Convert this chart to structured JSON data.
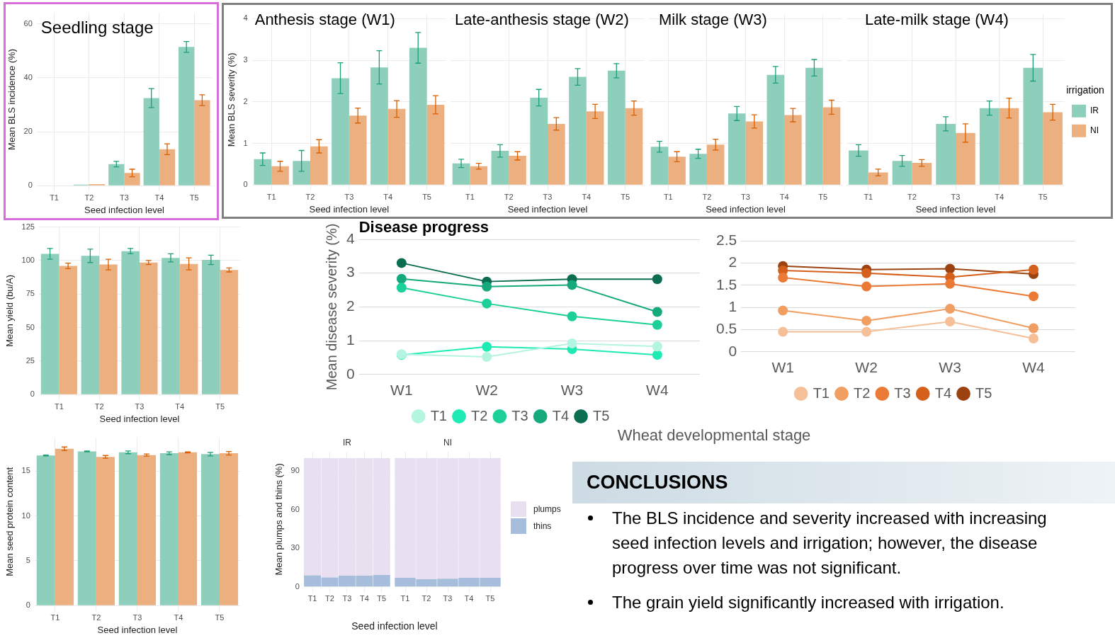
{
  "chart_data": [
    {
      "type": "bar",
      "title": "Seedling stage",
      "xlabel": "Seed infection level",
      "ylabel": "Mean BLS incidence (%)",
      "categories": [
        "T1",
        "T2",
        "T3",
        "T4",
        "T5"
      ],
      "series": [
        {
          "color": "#8dcfbb",
          "values": [
            0,
            0.4,
            8,
            32.5,
            51.5
          ],
          "errors": [
            null,
            null,
            1,
            3.5,
            2
          ]
        },
        {
          "color": "#ecaf80",
          "values": [
            0,
            0.6,
            4.7,
            13.5,
            31.7
          ],
          "errors": [
            null,
            null,
            1.4,
            2,
            2
          ]
        }
      ],
      "ylim": [
        0,
        64
      ],
      "yticks": [
        0,
        20,
        40,
        60
      ],
      "grid": true
    },
    {
      "type": "bar",
      "title": "Anthesis stage (W1)",
      "xlabel": "Seed infection level",
      "ylabel": "Mean BLS severity (%)",
      "categories": [
        "T1",
        "T2",
        "T3",
        "T4",
        "T5"
      ],
      "series": [
        {
          "color": "#8dcfbb",
          "values": [
            0.62,
            0.58,
            2.57,
            2.83,
            3.3
          ],
          "errors": [
            0.15,
            0.25,
            0.37,
            0.4,
            0.37
          ]
        },
        {
          "color": "#ecaf80",
          "values": [
            0.45,
            0.93,
            1.67,
            1.83,
            1.93
          ],
          "errors": [
            0.12,
            0.16,
            0.18,
            0.2,
            0.22
          ]
        }
      ],
      "ylim": [
        0,
        4.1
      ],
      "yticks": [
        0,
        1,
        2,
        3,
        4
      ],
      "grid": true
    },
    {
      "type": "bar",
      "title": "Late-anthesis stage (W2)",
      "xlabel": "Seed infection level",
      "categories": [
        "T1",
        "T2",
        "T3",
        "T4",
        "T5"
      ],
      "series": [
        {
          "color": "#8dcfbb",
          "values": [
            0.52,
            0.82,
            2.1,
            2.6,
            2.75
          ],
          "errors": [
            0.1,
            0.15,
            0.2,
            0.2,
            0.17
          ]
        },
        {
          "color": "#ecaf80",
          "values": [
            0.45,
            0.7,
            1.47,
            1.77,
            1.85
          ],
          "errors": [
            0.07,
            0.1,
            0.15,
            0.17,
            0.17
          ]
        }
      ],
      "ylim": [
        0,
        4.1
      ],
      "yticks": [
        0,
        1,
        2,
        3,
        4
      ],
      "tick_labels": "x",
      "grid": true
    },
    {
      "type": "bar",
      "title": "Milk stage (W3)",
      "xlabel": "Seed infection level",
      "categories": [
        "T1",
        "T2",
        "T3",
        "T4",
        "T5"
      ],
      "series": [
        {
          "color": "#8dcfbb",
          "values": [
            0.92,
            0.75,
            1.72,
            2.65,
            2.82
          ],
          "errors": [
            0.13,
            0.11,
            0.17,
            0.2,
            0.2
          ]
        },
        {
          "color": "#ecaf80",
          "values": [
            0.68,
            0.97,
            1.53,
            1.68,
            1.87
          ],
          "errors": [
            0.12,
            0.13,
            0.16,
            0.16,
            0.17
          ]
        }
      ],
      "ylim": [
        0,
        4.1
      ],
      "yticks": [
        0,
        1,
        2,
        3,
        4
      ],
      "tick_labels": "x",
      "grid": true
    },
    {
      "type": "bar",
      "title": "Late-milk stage (W4)",
      "xlabel": "Seed infection level",
      "legend_title": "irrigation",
      "legend": "right",
      "categories": [
        "T1",
        "T2",
        "T3",
        "T4",
        "T5"
      ],
      "series": [
        {
          "name": "IR",
          "color": "#8dcfbb",
          "values": [
            0.83,
            0.58,
            1.47,
            1.85,
            2.82
          ],
          "errors": [
            0.14,
            0.13,
            0.17,
            0.17,
            0.32
          ]
        },
        {
          "name": "NI",
          "color": "#ecaf80",
          "values": [
            0.3,
            0.53,
            1.25,
            1.85,
            1.75
          ],
          "errors": [
            0.08,
            0.08,
            0.22,
            0.24,
            0.19
          ]
        }
      ],
      "ylim": [
        0,
        4.1
      ],
      "yticks": [
        0,
        1,
        2,
        3,
        4
      ],
      "tick_labels": "x",
      "grid": true
    },
    {
      "type": "bar",
      "xlabel": "Seed infection level",
      "ylabel": "Mean yield (bu/A)",
      "categories": [
        "T1",
        "T2",
        "T3",
        "T4",
        "T5"
      ],
      "series": [
        {
          "color": "#8dcfbb",
          "values": [
            105,
            103.5,
            107,
            102,
            100.5
          ],
          "errors": [
            4,
            5,
            2,
            3,
            3.5
          ]
        },
        {
          "color": "#ecaf80",
          "values": [
            96,
            97,
            98.5,
            97.5,
            93
          ],
          "errors": [
            2,
            4,
            1.5,
            4.5,
            1.5
          ]
        }
      ],
      "ylim": [
        0,
        125
      ],
      "yticks": [
        0,
        25,
        50,
        75,
        100,
        125
      ],
      "grid": true
    },
    {
      "type": "bar",
      "xlabel": "Seed infection level",
      "ylabel": "Mean seed protein content",
      "categories": [
        "T1",
        "T2",
        "T3",
        "T4",
        "T5"
      ],
      "series": [
        {
          "color": "#8dcfbb",
          "values": [
            16.75,
            17.2,
            17.1,
            17.0,
            16.9
          ],
          "errors": [
            0.05,
            0.05,
            0.15,
            0.15,
            0.2
          ]
        },
        {
          "color": "#ecaf80",
          "values": [
            17.5,
            16.6,
            16.8,
            17.1,
            17.0
          ],
          "errors": [
            0.2,
            0.15,
            0.12,
            0.05,
            0.2
          ]
        }
      ],
      "ylim": [
        0,
        18.7
      ],
      "yticks": [
        0,
        5,
        10,
        15
      ],
      "grid": true
    },
    {
      "type": "bar",
      "stacked": true,
      "title": "IR",
      "ylabel": "Mean plumps and thins (%)",
      "categories": [
        "T1",
        "T2",
        "T3",
        "T4",
        "T5"
      ],
      "series": [
        {
          "color": "#a6bddb",
          "values": [
            9,
            7.3,
            8.7,
            8.7,
            9.3
          ]
        },
        {
          "color": "#e8dff0",
          "values": [
            91,
            92.7,
            91.3,
            91.3,
            90.7
          ]
        }
      ],
      "ylim": [
        0,
        105
      ],
      "yticks": [
        0,
        30,
        60,
        90
      ],
      "grid": true
    },
    {
      "type": "bar",
      "stacked": true,
      "title": "NI",
      "xlabel": "Seed infection level",
      "legend": "right",
      "categories": [
        "T1",
        "T2",
        "T3",
        "T4",
        "T5"
      ],
      "series": [
        {
          "name": "thins",
          "color": "#a6bddb",
          "values": [
            7,
            6,
            6.3,
            7,
            7
          ]
        },
        {
          "name": "plumps",
          "color": "#e8dff0",
          "values": [
            93,
            94,
            93.7,
            93,
            93
          ]
        }
      ],
      "ylim": [
        0,
        105
      ],
      "yticks": [
        0,
        30,
        60,
        90
      ],
      "tick_labels": "x",
      "grid": true
    },
    {
      "type": "line",
      "title": "Disease progress",
      "ylabel": "Mean disease severity (%)",
      "categories": [
        "W1",
        "W2",
        "W3",
        "W4"
      ],
      "series": [
        {
          "name": "T1",
          "color": "#b4f5e1",
          "values": [
            0.6,
            0.52,
            0.92,
            0.83
          ]
        },
        {
          "name": "T2",
          "color": "#1eebb4",
          "values": [
            0.58,
            0.82,
            0.75,
            0.58
          ]
        },
        {
          "name": "T3",
          "color": "#1dcf98",
          "values": [
            2.57,
            2.1,
            1.72,
            1.47
          ]
        },
        {
          "name": "T4",
          "color": "#15a97c",
          "values": [
            2.83,
            2.6,
            2.65,
            1.85
          ]
        },
        {
          "name": "T5",
          "color": "#0b6e50",
          "values": [
            3.3,
            2.75,
            2.82,
            2.82
          ]
        }
      ],
      "ylim": [
        0,
        4
      ],
      "yticks": [
        0,
        1,
        2,
        3,
        4
      ],
      "grid": "y",
      "legend": "bottom",
      "marker": "circle"
    },
    {
      "type": "line",
      "xlabel": "Wheat developmental stage",
      "categories": [
        "W1",
        "W2",
        "W3",
        "W4"
      ],
      "series": [
        {
          "name": "T1",
          "color": "#f6bf97",
          "values": [
            0.45,
            0.45,
            0.68,
            0.3
          ]
        },
        {
          "name": "T2",
          "color": "#f19e63",
          "values": [
            0.93,
            0.7,
            0.97,
            0.53
          ]
        },
        {
          "name": "T3",
          "color": "#eb7a37",
          "values": [
            1.67,
            1.47,
            1.53,
            1.25
          ]
        },
        {
          "name": "T4",
          "color": "#d4601b",
          "values": [
            1.83,
            1.77,
            1.68,
            1.85
          ]
        },
        {
          "name": "T5",
          "color": "#9c4211",
          "values": [
            1.93,
            1.85,
            1.87,
            1.75
          ]
        }
      ],
      "ylim": [
        0,
        2.5
      ],
      "yticks": [
        0,
        0.5,
        1,
        1.5,
        2,
        2.5
      ],
      "grid": "y",
      "legend": "bottom",
      "marker": "circle"
    },
    {
      "type": "other",
      "title": "CONCLUSIONS",
      "annotations": [
        "The BLS incidence and severity increased with increasing seed infection levels and irrigation; however, the disease progress over time was not significant.",
        "The grain yield significantly increased with irrigation."
      ]
    }
  ]
}
